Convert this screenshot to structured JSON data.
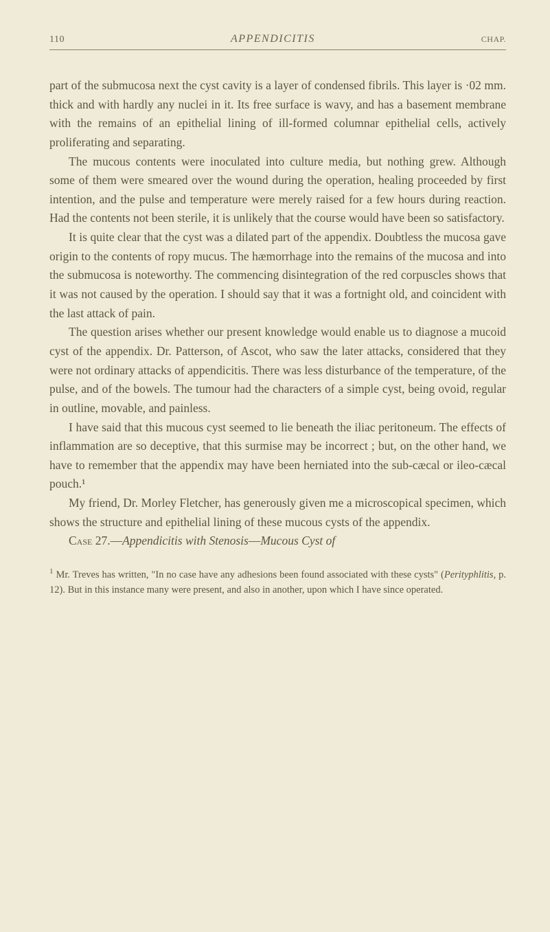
{
  "header": {
    "page_number": "110",
    "title": "APPENDICITIS",
    "chap": "CHAP."
  },
  "paragraphs": {
    "p1": "part of the submucosa next the cyst cavity is a layer of condensed fibrils. This layer is ·02 mm. thick and with hardly any nuclei in it. Its free surface is wavy, and has a basement membrane with the remains of an epithelial lining of ill-formed columnar epithelial cells, actively proliferating and separating.",
    "p2": "The mucous contents were inoculated into culture media, but nothing grew. Although some of them were smeared over the wound during the operation, healing proceeded by first intention, and the pulse and temperature were merely raised for a few hours during reaction. Had the contents not been sterile, it is unlikely that the course would have been so satisfactory.",
    "p3": "It is quite clear that the cyst was a dilated part of the appendix. Doubtless the mucosa gave origin to the contents of ropy mucus. The hæmorrhage into the remains of the mucosa and into the submucosa is noteworthy. The commencing disintegration of the red corpuscles shows that it was not caused by the operation. I should say that it was a fortnight old, and coincident with the last attack of pain.",
    "p4": "The question arises whether our present knowledge would enable us to diagnose a mucoid cyst of the appendix. Dr. Patterson, of Ascot, who saw the later attacks, considered that they were not ordinary attacks of appendicitis. There was less disturbance of the temperature, of the pulse, and of the bowels. The tumour had the characters of a simple cyst, being ovoid, regular in outline, movable, and painless.",
    "p5": "I have said that this mucous cyst seemed to lie beneath the iliac peritoneum. The effects of inflammation are so deceptive, that this surmise may be incorrect ; but, on the other hand, we have to remember that the appendix may have been herniated into the sub-cæcal or ileo-cæcal pouch.¹",
    "p6": "My friend, Dr. Morley Fletcher, has generously given me a microscopical specimen, which shows the structure and epithelial lining of these mucous cysts of the appendix.",
    "case_label": "Case",
    "case_num": " 27.—",
    "case_title_ital": "Appendicitis with Stenosis",
    "case_dash": "—",
    "case_title2": "Mucous Cyst of"
  },
  "footnote": {
    "marker": "1",
    "pre": " Mr. Treves has written, \"In no case have any adhesions been found associated with these cysts\" (",
    "ital": "Perityphlitis",
    "post": ", p. 12). But in this instance many were present, and also in another, upon which I have since operated."
  }
}
